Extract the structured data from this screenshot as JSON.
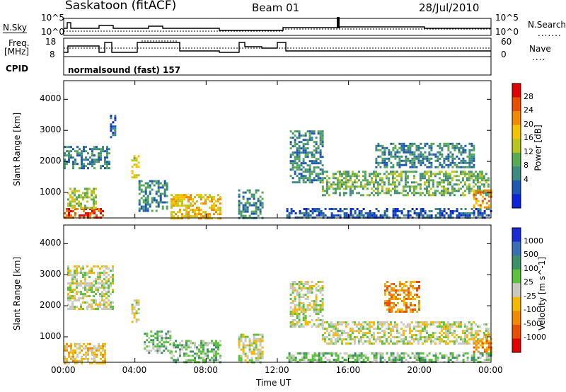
{
  "header": {
    "station": "Saskatoon (fitACF)",
    "beam": "Beam 01",
    "date": "28/Jul/2010"
  },
  "panels": {
    "nsky_label": "N.Sky",
    "nsearch_label": "N.Search",
    "freq_label_top": "Freq.",
    "freq_label_units": "[MHz]",
    "nave_label": "Nave",
    "cpid_label": "CPID",
    "cpid_text": "normalsound (fast) 157",
    "nsky_ticks": [
      "10^5",
      "10^0"
    ],
    "nsearch_ticks": [
      "10^5",
      "10^0"
    ],
    "freq_ticks": [
      "18",
      "8"
    ],
    "nave_ticks": [
      "60",
      "0"
    ]
  },
  "chart_data": [
    {
      "type": "heatmap",
      "name": "power",
      "xlabel": "",
      "ylabel": "Slant Range [km]",
      "xlim": [
        0,
        24
      ],
      "ylim": [
        180,
        4600
      ],
      "x_ticks": [
        "00:00",
        "04:00",
        "08:00",
        "12:00",
        "16:00",
        "20:00",
        "00:00"
      ],
      "y_ticks": [
        1000,
        2000,
        3000,
        4000
      ],
      "colorbar_label": "Power [dB]",
      "colorbar_ticks": [
        "4",
        "8",
        "12",
        "16",
        "20",
        "24",
        "28"
      ],
      "colorbar_colors": [
        "#0b24d9",
        "#1f58b0",
        "#3f8a7f",
        "#5aaa55",
        "#b9c51f",
        "#f2c300",
        "#f08a00",
        "#e85000",
        "#e30000"
      ],
      "regions": [
        {
          "t": [
            0.0,
            2.2
          ],
          "r": [
            180,
            500
          ],
          "level": 7
        },
        {
          "t": [
            0.2,
            1.8
          ],
          "r": [
            500,
            1150
          ],
          "level": 4
        },
        {
          "t": [
            0.0,
            2.6
          ],
          "r": [
            1800,
            2500
          ],
          "level": 2
        },
        {
          "t": [
            2.6,
            2.9
          ],
          "r": [
            2700,
            3500
          ],
          "level": 1
        },
        {
          "t": [
            3.8,
            4.2
          ],
          "r": [
            1500,
            2200
          ],
          "level": 4
        },
        {
          "t": [
            4.2,
            5.8
          ],
          "r": [
            400,
            1400
          ],
          "level": 2
        },
        {
          "t": [
            6.0,
            8.8
          ],
          "r": [
            180,
            950
          ],
          "level": 5
        },
        {
          "t": [
            9.8,
            11.2
          ],
          "r": [
            180,
            1100
          ],
          "level": 2
        },
        {
          "t": [
            12.7,
            14.5
          ],
          "r": [
            1300,
            3000
          ],
          "level": 2
        },
        {
          "t": [
            14.5,
            23.9
          ],
          "r": [
            900,
            1700
          ],
          "level": 3
        },
        {
          "t": [
            12.5,
            24.0
          ],
          "r": [
            180,
            500
          ],
          "level": 1
        },
        {
          "t": [
            17.5,
            23.0
          ],
          "r": [
            1800,
            2600
          ],
          "level": 2
        },
        {
          "t": [
            23.0,
            24.0
          ],
          "r": [
            500,
            1100
          ],
          "level": 6
        }
      ]
    },
    {
      "type": "heatmap",
      "name": "velocity",
      "xlabel": "Time UT",
      "ylabel": "Slant Range [km]",
      "xlim": [
        0,
        24
      ],
      "ylim": [
        180,
        4600
      ],
      "x_ticks": [
        "00:00",
        "04:00",
        "08:00",
        "12:00",
        "16:00",
        "20:00",
        "00:00"
      ],
      "y_ticks": [
        1000,
        2000,
        3000,
        4000
      ],
      "colorbar_label": "Velocity [m s^-1]",
      "colorbar_ticks": [
        "1000",
        "500",
        "100",
        "25",
        "-25",
        "-100",
        "-500",
        "-1000"
      ],
      "colorbar_colors": [
        "#1a2bd6",
        "#3a6fb4",
        "#3d8f66",
        "#5cc23c",
        "#c8c8c0",
        "#f5b800",
        "#f08a00",
        "#e85000",
        "#e30000"
      ],
      "regions": [
        {
          "t": [
            0.0,
            2.3
          ],
          "r": [
            180,
            800
          ],
          "level": 5
        },
        {
          "t": [
            0.2,
            2.8
          ],
          "r": [
            1900,
            3300
          ],
          "level": 4
        },
        {
          "t": [
            3.8,
            4.2
          ],
          "r": [
            1500,
            2200
          ],
          "level": 4
        },
        {
          "t": [
            4.5,
            6.0
          ],
          "r": [
            500,
            1200
          ],
          "level": 3
        },
        {
          "t": [
            6.0,
            8.8
          ],
          "r": [
            180,
            900
          ],
          "level": 3
        },
        {
          "t": [
            9.8,
            11.2
          ],
          "r": [
            180,
            1100
          ],
          "level": 4
        },
        {
          "t": [
            12.7,
            14.5
          ],
          "r": [
            1300,
            2800
          ],
          "level": 4
        },
        {
          "t": [
            14.5,
            23.9
          ],
          "r": [
            800,
            1500
          ],
          "level": 4
        },
        {
          "t": [
            12.5,
            24.0
          ],
          "r": [
            180,
            500
          ],
          "level": 3
        },
        {
          "t": [
            18.0,
            20.0
          ],
          "r": [
            1800,
            2800
          ],
          "level": 6
        },
        {
          "t": [
            23.0,
            24.0
          ],
          "r": [
            500,
            1100
          ],
          "level": 6
        }
      ]
    }
  ]
}
